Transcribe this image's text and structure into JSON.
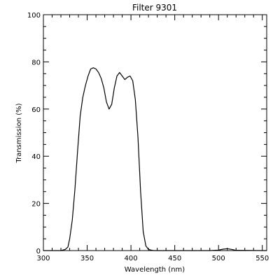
{
  "chart_data": {
    "type": "line",
    "title": "Filter 9301",
    "xlabel": "Wavelength (nm)",
    "ylabel": "Transmission (%)",
    "xlim": [
      300,
      555
    ],
    "ylim": [
      0,
      100
    ],
    "xticks": [
      300,
      350,
      400,
      450,
      500,
      550
    ],
    "yticks": [
      0,
      20,
      40,
      60,
      80,
      100
    ],
    "grid": false,
    "series": [
      {
        "x": [
          300,
          320,
          325,
          328,
          330,
          333,
          336,
          339,
          342,
          345,
          348,
          351,
          354,
          357,
          360,
          363,
          366,
          369,
          372,
          375,
          378,
          381,
          384,
          387,
          390,
          393,
          396,
          399,
          402,
          405,
          408,
          411,
          414,
          417,
          420,
          423,
          426,
          430,
          435,
          440,
          445,
          450,
          490,
          500,
          505,
          510,
          515,
          520,
          555
        ],
        "y": [
          0,
          0,
          0.5,
          1.5,
          5,
          13,
          26,
          42,
          57,
          65,
          70,
          74,
          77,
          77.5,
          77,
          75.5,
          73,
          69,
          63,
          60,
          62,
          69,
          74,
          75.5,
          74,
          72.5,
          73.5,
          74,
          72,
          64,
          48,
          25,
          8,
          2,
          0.5,
          0.2,
          0,
          0,
          0,
          0,
          0,
          0,
          0,
          0.2,
          0.6,
          0.8,
          0.5,
          0.1,
          0
        ]
      }
    ]
  }
}
